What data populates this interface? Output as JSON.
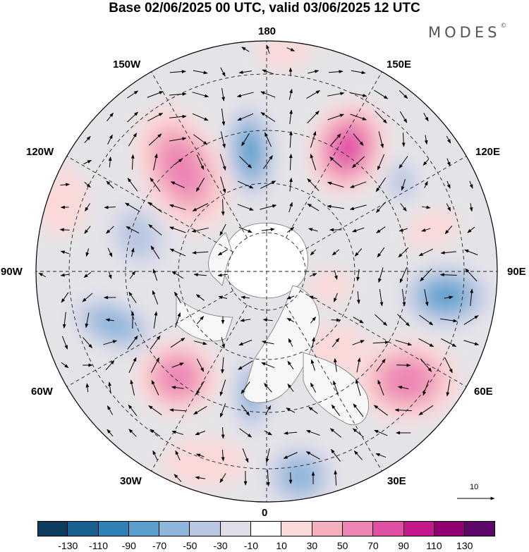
{
  "title": "Base 02/06/2025 00 UTC, valid 03/06/2025 12 UTC",
  "brand": {
    "name": "MODES",
    "mark": "©"
  },
  "longitudes": {
    "top": "180",
    "bottom": "0",
    "left": "90W",
    "right": "90E",
    "ul1": "150W",
    "ul2": "120W",
    "ur1": "150E",
    "ur2": "120E",
    "ll1": "60W",
    "ll2": "30W",
    "lr1": "60E",
    "lr2": "30E"
  },
  "reference_vector": {
    "label": "10"
  },
  "colorbar": {
    "colors": [
      "#0c3d5e",
      "#17608f",
      "#2f81b6",
      "#5a9fcb",
      "#8db6da",
      "#b8c6e1",
      "#dedde9",
      "#ffffff",
      "#fbd9d9",
      "#f4afbf",
      "#ec85b4",
      "#df4fa4",
      "#c4178b",
      "#91006f",
      "#5b0868"
    ],
    "ticks": [
      "-130",
      "-110",
      "-90",
      "-70",
      "-50",
      "-30",
      "-10",
      "10",
      "30",
      "50",
      "70",
      "90",
      "110",
      "130"
    ]
  }
}
